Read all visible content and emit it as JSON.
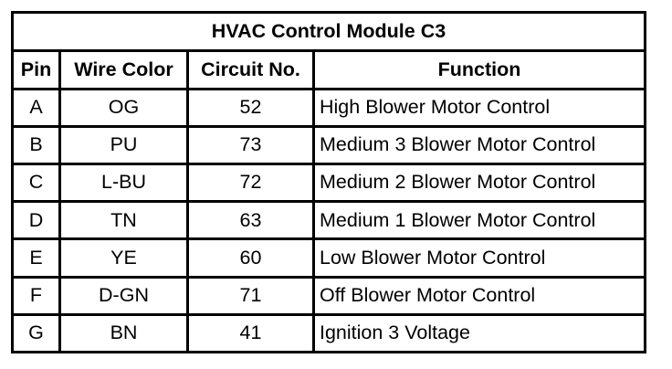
{
  "title": "HVAC Control Module C3",
  "headers": [
    "Pin",
    "Wire Color",
    "Circuit No.",
    "Function"
  ],
  "rows": [
    {
      "pin": "A",
      "wire": "OG",
      "circuit": "52",
      "function": "High Blower Motor Control"
    },
    {
      "pin": "B",
      "wire": "PU",
      "circuit": "73",
      "function": "Medium 3 Blower Motor Control"
    },
    {
      "pin": "C",
      "wire": "L-BU",
      "circuit": "72",
      "function": "Medium 2 Blower Motor Control"
    },
    {
      "pin": "D",
      "wire": "TN",
      "circuit": "63",
      "function": "Medium 1 Blower Motor Control"
    },
    {
      "pin": "E",
      "wire": "YE",
      "circuit": "60",
      "function": "Low Blower Motor Control"
    },
    {
      "pin": "F",
      "wire": "D-GN",
      "circuit": "71",
      "function": "Off Blower Motor Control"
    },
    {
      "pin": "G",
      "wire": "BN",
      "circuit": "41",
      "function": "Ignition 3 Voltage"
    }
  ]
}
